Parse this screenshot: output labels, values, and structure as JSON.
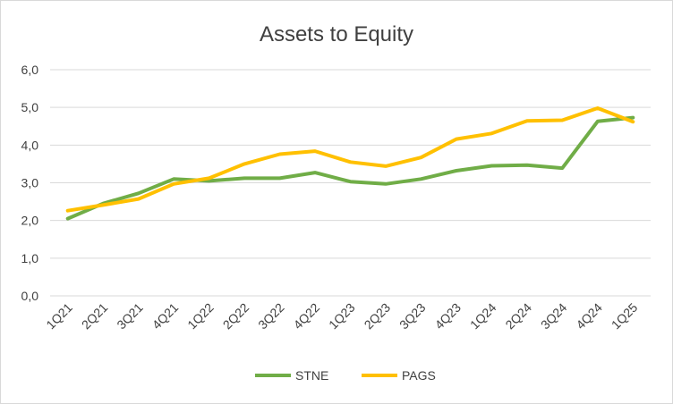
{
  "chart_data": {
    "type": "line",
    "title": "Assets to Equity",
    "categories": [
      "1Q21",
      "2Q21",
      "3Q21",
      "4Q21",
      "1Q22",
      "2Q22",
      "3Q22",
      "4Q22",
      "1Q23",
      "2Q23",
      "3Q23",
      "4Q23",
      "1Q24",
      "2Q24",
      "3Q24",
      "4Q24",
      "1Q25"
    ],
    "series": [
      {
        "name": "STNE",
        "color": "#70ad47",
        "values": [
          2.05,
          2.45,
          2.72,
          3.1,
          3.05,
          3.12,
          3.12,
          3.27,
          3.03,
          2.97,
          3.1,
          3.32,
          3.45,
          3.47,
          3.39,
          4.63,
          4.73
        ]
      },
      {
        "name": "PAGS",
        "color": "#ffc000",
        "values": [
          2.26,
          2.41,
          2.57,
          2.97,
          3.12,
          3.5,
          3.76,
          3.84,
          3.55,
          3.44,
          3.67,
          4.16,
          4.31,
          4.64,
          4.66,
          4.98,
          4.62
        ]
      }
    ],
    "yticks": [
      "0,0",
      "1,0",
      "2,0",
      "3,0",
      "4,0",
      "5,0",
      "6,0"
    ],
    "ylim": [
      0,
      6
    ],
    "grid": true,
    "legend": "bottom"
  }
}
